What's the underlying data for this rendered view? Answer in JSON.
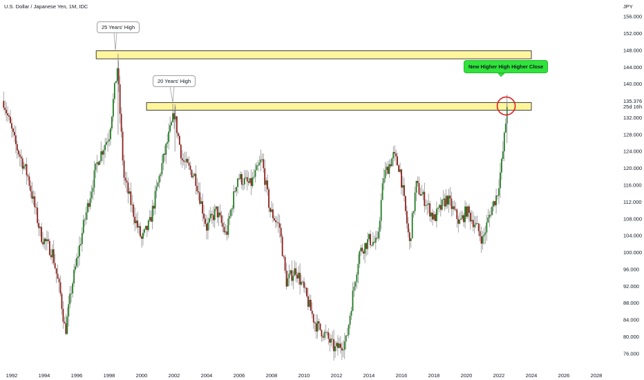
{
  "header": {
    "symbol_title": "U.S. Dollar / Japanese Yen, 1M, IDC",
    "currency": "JPY"
  },
  "annotations": {
    "high_25": "25 Years' High",
    "high_20": "20 Years' High",
    "new_high": "New Higher High Higher Close"
  },
  "price_label": {
    "price": "135.376",
    "countdown": "25d 16h"
  },
  "colors": {
    "up": "#1e7a20",
    "down": "#8c1d18",
    "wick": "#7d7d7d",
    "zone_fill": "#fff59d",
    "zone_border": "#2b2b2b",
    "callout_green": "#2fe33a",
    "circle": "#e01b1b"
  },
  "chart_data": {
    "type": "candlestick",
    "title": "U.S. Dollar / Japanese Yen, 1M, IDC",
    "y_axis_label": "JPY",
    "ylim": [
      74,
      158
    ],
    "xlim": [
      1991.5,
      2029.5
    ],
    "y_ticks": [
      76,
      80,
      84,
      88,
      92,
      96,
      100,
      104,
      108,
      112,
      116,
      120,
      124,
      128,
      132,
      136,
      140,
      144,
      148,
      152,
      156
    ],
    "y_tick_labels": [
      "76.000",
      "80.000",
      "84.000",
      "88.000",
      "92.000",
      "96.000",
      "100.000",
      "104.000",
      "108.000",
      "112.000",
      "116.000",
      "120.000",
      "124.000",
      "128.000",
      "132.000",
      "136.000",
      "140.000",
      "144.000",
      "148.000",
      "152.000",
      "156.000"
    ],
    "x_ticks": [
      1992,
      1994,
      1996,
      1998,
      2000,
      2002,
      2004,
      2006,
      2008,
      2010,
      2012,
      2014,
      2016,
      2018,
      2020,
      2022,
      2024,
      2026,
      2028
    ],
    "x_tick_labels": [
      "1992",
      "1994",
      "1996",
      "1998",
      "2000",
      "2002",
      "2004",
      "2006",
      "2008",
      "2010",
      "2012",
      "2014",
      "2016",
      "2018",
      "2020",
      "2022",
      "2024",
      "2026",
      "2028"
    ],
    "price_path": [
      [
        1991.5,
        136
      ],
      [
        1992.2,
        126
      ],
      [
        1993.0,
        118
      ],
      [
        1993.8,
        104
      ],
      [
        1994.5,
        100
      ],
      [
        1995.0,
        90
      ],
      [
        1995.3,
        81
      ],
      [
        1995.7,
        92
      ],
      [
        1996.5,
        108
      ],
      [
        1997.3,
        122
      ],
      [
        1998.0,
        128
      ],
      [
        1998.5,
        144
      ],
      [
        1998.9,
        118
      ],
      [
        1999.6,
        108
      ],
      [
        2000.0,
        103
      ],
      [
        2000.5,
        107
      ],
      [
        2001.2,
        120
      ],
      [
        2002.0,
        133
      ],
      [
        2002.5,
        122
      ],
      [
        2003.3,
        118
      ],
      [
        2004.0,
        106
      ],
      [
        2004.6,
        110
      ],
      [
        2005.2,
        104
      ],
      [
        2005.9,
        118
      ],
      [
        2006.7,
        116
      ],
      [
        2007.4,
        122
      ],
      [
        2007.9,
        110
      ],
      [
        2008.5,
        106
      ],
      [
        2008.9,
        93
      ],
      [
        2009.5,
        96
      ],
      [
        2010.0,
        91
      ],
      [
        2010.7,
        83
      ],
      [
        2011.4,
        80
      ],
      [
        2011.9,
        77
      ],
      [
        2012.6,
        79
      ],
      [
        2013.0,
        90
      ],
      [
        2013.4,
        100
      ],
      [
        2014.0,
        103
      ],
      [
        2014.5,
        102
      ],
      [
        2014.9,
        118
      ],
      [
        2015.5,
        123
      ],
      [
        2015.9,
        120
      ],
      [
        2016.5,
        102
      ],
      [
        2016.9,
        116
      ],
      [
        2017.5,
        112
      ],
      [
        2018.0,
        108
      ],
      [
        2018.8,
        113
      ],
      [
        2019.6,
        107
      ],
      [
        2020.0,
        110
      ],
      [
        2020.5,
        107
      ],
      [
        2021.0,
        103
      ],
      [
        2021.5,
        110
      ],
      [
        2021.9,
        114
      ],
      [
        2022.2,
        122
      ],
      [
        2022.4,
        130
      ],
      [
        2022.5,
        135.4
      ]
    ],
    "zones": [
      {
        "from": 1997.2,
        "to": 2024.0,
        "low": 146.0,
        "high": 147.9
      },
      {
        "from": 2000.3,
        "to": 2024.0,
        "low": 133.8,
        "high": 135.6
      }
    ],
    "last_price": 135.376
  }
}
